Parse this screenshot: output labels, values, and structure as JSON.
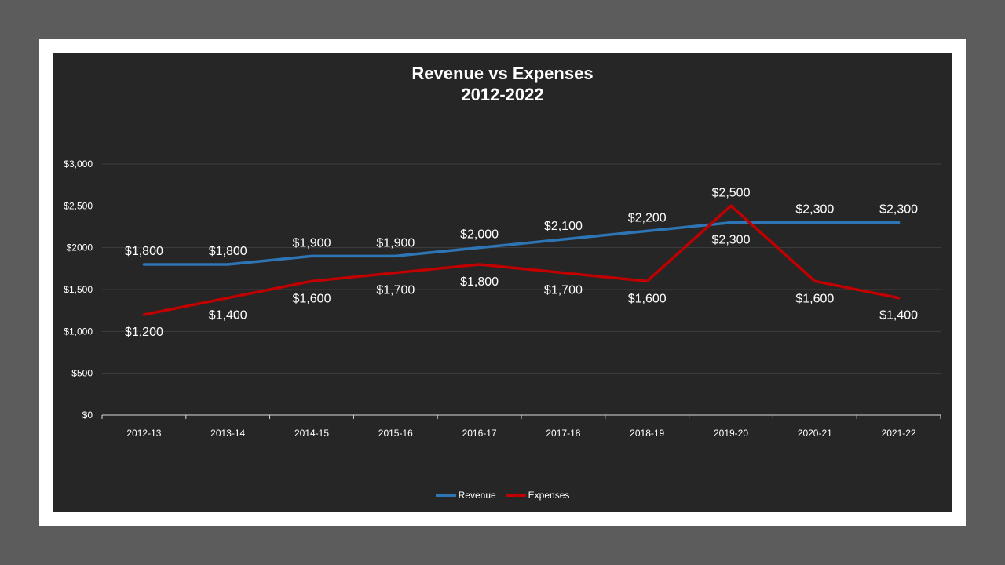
{
  "chart_data": {
    "type": "line",
    "title": "Revenue vs Expenses",
    "subtitle": "2012-2022",
    "xlabel": "",
    "ylabel": "",
    "categories": [
      "2012-13",
      "2013-14",
      "2014-15",
      "2015-16",
      "2016-17",
      "2017-18",
      "2018-19",
      "2019-20",
      "2020-21",
      "2021-22"
    ],
    "series": [
      {
        "name": "Revenue",
        "color": "#2e75b6",
        "values": [
          1800,
          1800,
          1900,
          1900,
          2000,
          2100,
          2200,
          2300,
          2300,
          2300
        ],
        "labels": [
          "$1,800",
          "$1,800",
          "$1,900",
          "$1,900",
          "$2,000",
          "$2,100",
          "$2,200",
          "$2,300",
          "$2,300",
          "$2,300"
        ]
      },
      {
        "name": "Expenses",
        "color": "#c00000",
        "values": [
          1200,
          1400,
          1600,
          1700,
          1800,
          1700,
          1600,
          2500,
          1600,
          1400
        ],
        "labels": [
          "$1,200",
          "$1,400",
          "$1,600",
          "$1,700",
          "$1,800",
          "$1,700",
          "$1,600",
          "$2,500",
          "$1,600",
          "$1,400"
        ]
      }
    ],
    "y_ticks": [
      0,
      500,
      1000,
      1500,
      2000,
      2500,
      3000
    ],
    "y_tick_labels": [
      "$0",
      "$500",
      "$1,000",
      "$1,500",
      "$2000",
      "$2,500",
      "$3,000"
    ],
    "ylim": [
      0,
      3000
    ],
    "grid": true,
    "legend_position": "bottom",
    "background": "#262626"
  }
}
